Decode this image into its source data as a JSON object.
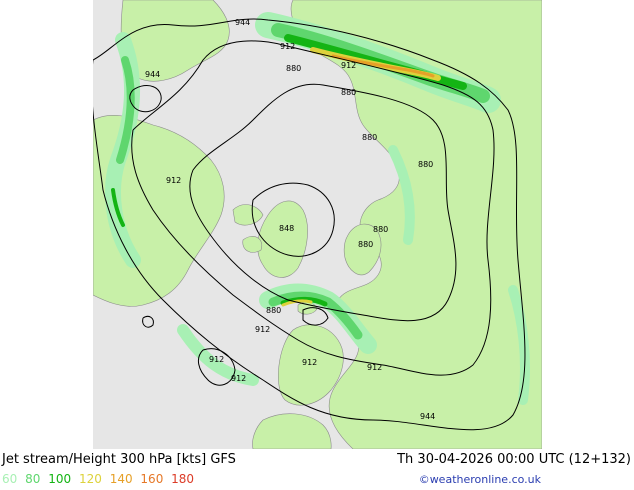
{
  "title": {
    "text": "Jet stream/Height 300 hPa [kts] GFS",
    "timestamp": "Th 30-04-2026 00:00 UTC (12+132)"
  },
  "legend": {
    "items": [
      {
        "label": "60",
        "color": "#a8f0b4"
      },
      {
        "label": "80",
        "color": "#5fd66e"
      },
      {
        "label": "100",
        "color": "#14b414"
      },
      {
        "label": "120",
        "color": "#ddd23c"
      },
      {
        "label": "140",
        "color": "#e6a028"
      },
      {
        "label": "160",
        "color": "#e67828"
      },
      {
        "label": "180",
        "color": "#dc3c28"
      }
    ]
  },
  "credit": "©weatheronline.co.uk",
  "contour_labels": [
    "944",
    "912",
    "880",
    "912",
    "944",
    "880",
    "912",
    "880",
    "880",
    "848",
    "880",
    "880",
    "880",
    "912",
    "912",
    "912",
    "912",
    "944",
    "880"
  ],
  "colors": {
    "sea": "#e6e6e6",
    "land": "#c8f0a8",
    "coast": "#8c8c8c"
  }
}
